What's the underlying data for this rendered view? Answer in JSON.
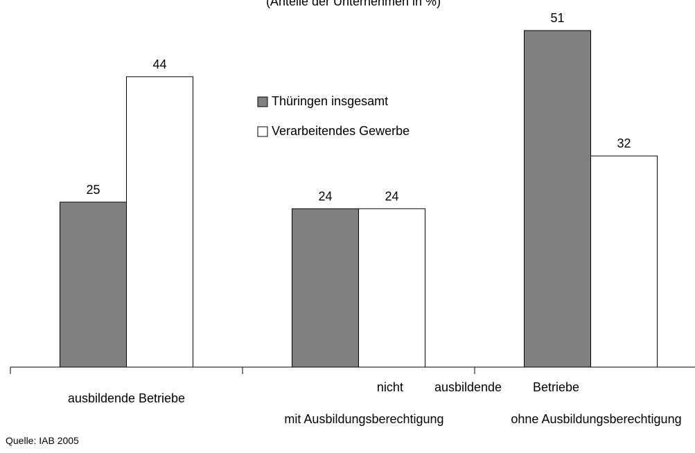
{
  "chart_data": {
    "type": "bar",
    "subtitle": "(Anteile der Unternehmen in %)",
    "categories": [
      "ausbildende Betriebe",
      "mit Ausbildungsberechtigung",
      "ohne Ausbildungsberechtigung"
    ],
    "group_label": "nicht ausbildende Betriebe",
    "series": [
      {
        "name": "Thüringen insgesamt",
        "color": "#808080",
        "values": [
          25,
          24,
          51
        ]
      },
      {
        "name": "Verarbeitendes Gewerbe",
        "color": "#ffffff",
        "values": [
          44,
          24,
          32
        ]
      }
    ],
    "ylim": [
      0,
      55
    ],
    "source": "Quelle: IAB 2005"
  }
}
